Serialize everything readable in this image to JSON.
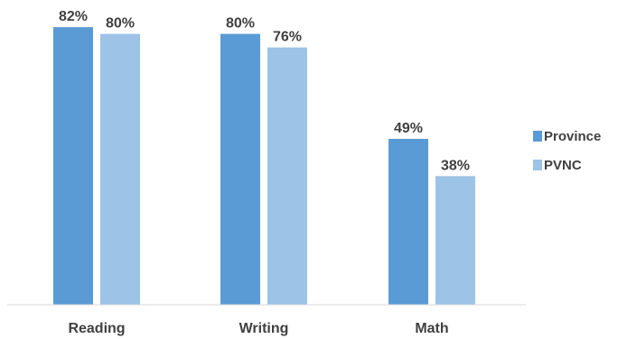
{
  "chart_data": {
    "type": "bar",
    "categories": [
      "Reading",
      "Writing",
      "Math"
    ],
    "series": [
      {
        "name": "Province",
        "values": [
          82,
          80,
          49
        ],
        "labels": [
          "82%",
          "80%",
          "49%"
        ],
        "color": "#5B9BD5"
      },
      {
        "name": "PVNC",
        "values": [
          80,
          76,
          38
        ],
        "labels": [
          "80%",
          "76%",
          "38%"
        ],
        "color": "#9DC3E6"
      }
    ],
    "ylim": [
      0,
      90
    ],
    "grid": false,
    "legend_position": "right",
    "baseline_color": "#D9D9D9"
  }
}
